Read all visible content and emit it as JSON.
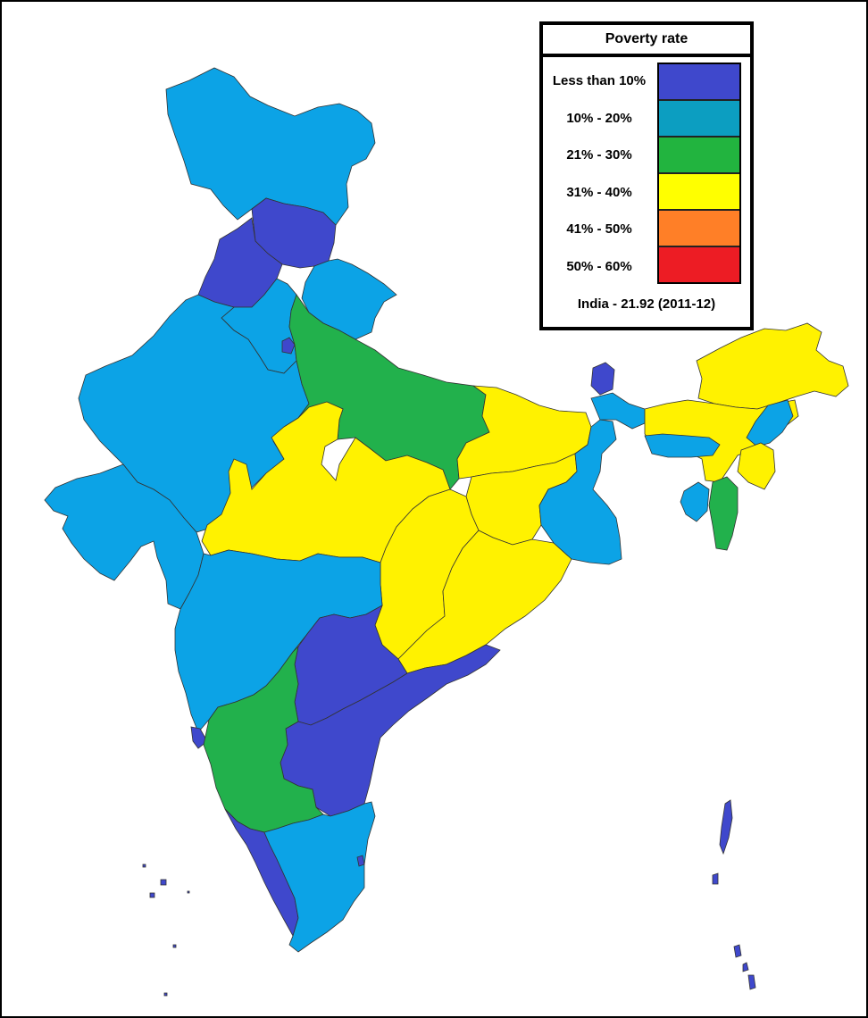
{
  "legend": {
    "title": "Poverty rate",
    "items": [
      {
        "label": "Less than 10%",
        "color": "#3f48cc"
      },
      {
        "label": "10% - 20%",
        "color": "#0c9ec1"
      },
      {
        "label": "21% - 30%",
        "color": "#22b43f"
      },
      {
        "label": "31% - 40%",
        "color": "#ffff00"
      },
      {
        "label": "41% - 50%",
        "color": "#ff7f27"
      },
      {
        "label": "50% - 60%",
        "color": "#ed1c24"
      }
    ],
    "footer": "India - 21.92 (2011-12)"
  },
  "map_colors": {
    "less_than_10": "#3f48cc",
    "ten_to_20": "#0ca3e6",
    "twenty_one_to_30": "#22b14c",
    "thirty_one_to_40": "#fff200"
  }
}
